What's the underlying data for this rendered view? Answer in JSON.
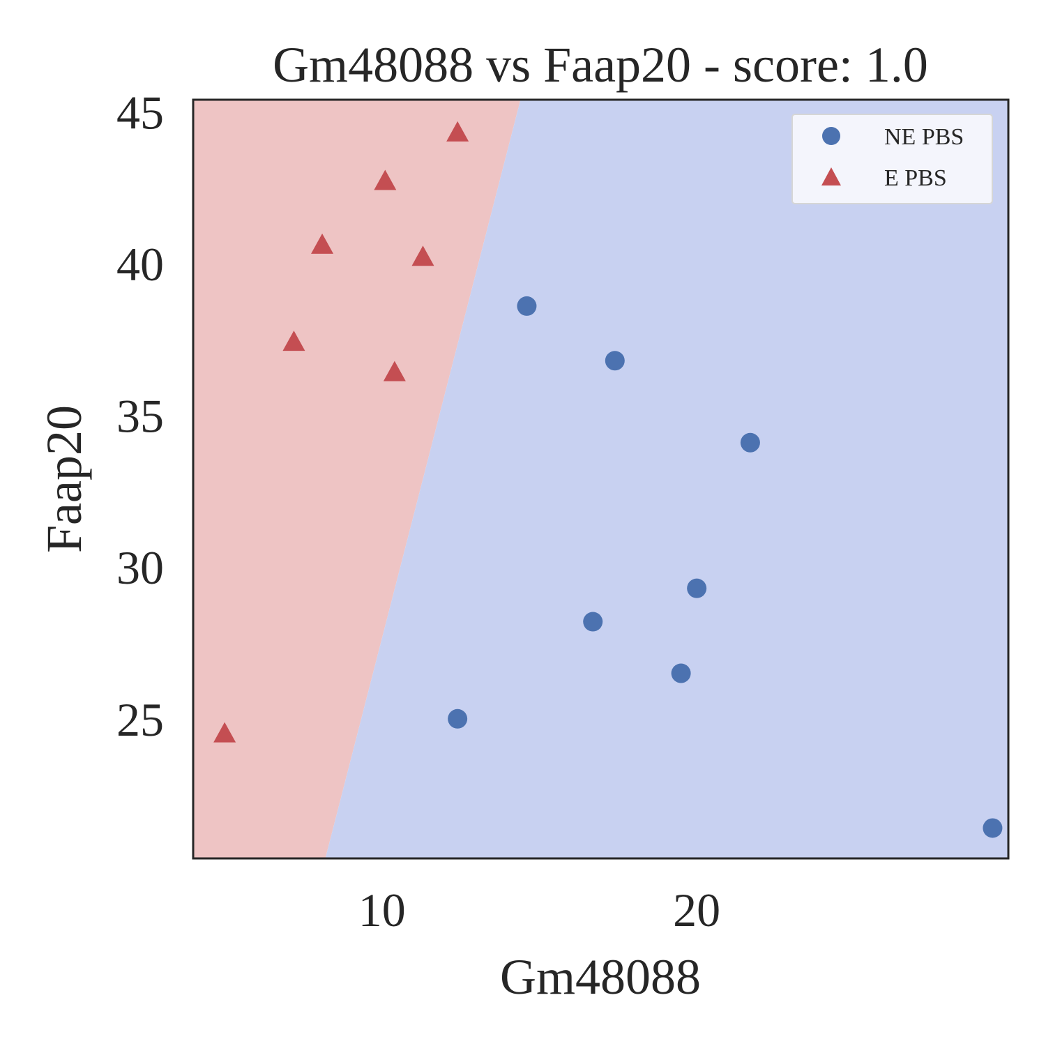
{
  "chart_data": {
    "type": "scatter",
    "title": "Gm48088 vs Faap20 - score: 1.0",
    "xlabel": "Gm48088",
    "ylabel": "Faap20",
    "xlim": [
      4.0,
      29.9
    ],
    "ylim": [
      20.4,
      45.4
    ],
    "xticks": [
      10,
      20
    ],
    "yticks": [
      25,
      30,
      35,
      40,
      45
    ],
    "grid": false,
    "legend_position": "top-right",
    "decision_boundary": {
      "line": [
        [
          8.2,
          20.4
        ],
        [
          14.4,
          45.4
        ]
      ],
      "left_region_class": "E PBS",
      "right_region_class": "NE PBS"
    },
    "series": [
      {
        "name": "NE PBS",
        "marker": "circle",
        "color": "#4c72b0",
        "region_color": "#c8d1f1",
        "points": [
          {
            "x": 14.6,
            "y": 38.6
          },
          {
            "x": 17.4,
            "y": 36.8
          },
          {
            "x": 21.7,
            "y": 34.1
          },
          {
            "x": 20.0,
            "y": 29.3
          },
          {
            "x": 16.7,
            "y": 28.2
          },
          {
            "x": 19.5,
            "y": 26.5
          },
          {
            "x": 12.4,
            "y": 25.0
          },
          {
            "x": 29.4,
            "y": 21.4
          }
        ]
      },
      {
        "name": "E PBS",
        "marker": "triangle",
        "color": "#c44e52",
        "region_color": "#eec4c4",
        "points": [
          {
            "x": 12.4,
            "y": 44.3
          },
          {
            "x": 10.1,
            "y": 42.7
          },
          {
            "x": 8.1,
            "y": 40.6
          },
          {
            "x": 11.3,
            "y": 40.2
          },
          {
            "x": 7.2,
            "y": 37.4
          },
          {
            "x": 10.4,
            "y": 36.4
          },
          {
            "x": 5.0,
            "y": 24.5
          }
        ]
      }
    ]
  }
}
